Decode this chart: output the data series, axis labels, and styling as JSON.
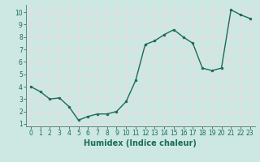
{
  "x": [
    0,
    1,
    2,
    3,
    4,
    5,
    6,
    7,
    8,
    9,
    10,
    11,
    12,
    13,
    14,
    15,
    16,
    17,
    18,
    19,
    20,
    21,
    22,
    23
  ],
  "y": [
    4.0,
    3.6,
    3.0,
    3.1,
    2.4,
    1.3,
    1.6,
    1.8,
    1.8,
    2.0,
    2.8,
    4.5,
    7.4,
    7.7,
    8.2,
    8.6,
    8.0,
    7.5,
    5.5,
    5.3,
    5.5,
    10.2,
    9.8,
    9.5
  ],
  "line_color": "#1a6b5a",
  "marker": "o",
  "marker_size": 2.0,
  "bg_color": "#cde8e2",
  "grid_color": "#f0d8dc",
  "xlabel": "Humidex (Indice chaleur)",
  "xlim": [
    -0.5,
    23.5
  ],
  "ylim": [
    0.8,
    10.6
  ],
  "yticks": [
    1,
    2,
    3,
    4,
    5,
    6,
    7,
    8,
    9,
    10
  ],
  "xticks": [
    0,
    1,
    2,
    3,
    4,
    5,
    6,
    7,
    8,
    9,
    10,
    11,
    12,
    13,
    14,
    15,
    16,
    17,
    18,
    19,
    20,
    21,
    22,
    23
  ],
  "tick_fontsize": 5.5,
  "label_fontsize": 7,
  "label_color": "#1a6b5a",
  "tick_color": "#1a6b5a",
  "spine_color": "#5a8a80",
  "linewidth": 1.0
}
